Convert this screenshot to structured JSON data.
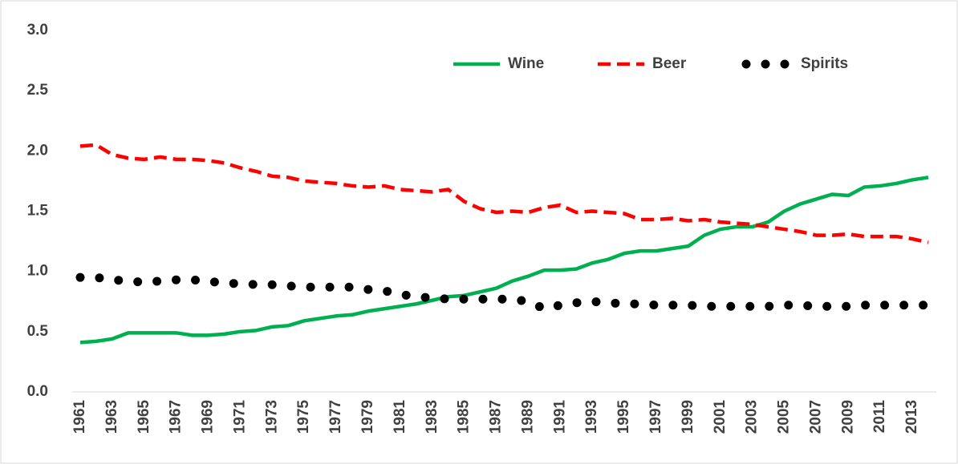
{
  "chart_data": {
    "type": "line",
    "categories": [
      "1961",
      null,
      "1963",
      null,
      "1965",
      null,
      "1967",
      null,
      "1969",
      null,
      "1971",
      null,
      "1973",
      null,
      "1975",
      null,
      "1977",
      null,
      "1979",
      null,
      "1981",
      null,
      "1983",
      null,
      "1985",
      null,
      "1987",
      null,
      "1989",
      null,
      "1991",
      null,
      "1993",
      null,
      "1995",
      null,
      "1997",
      null,
      "1999",
      null,
      "2001",
      null,
      "2003",
      null,
      "2005",
      null,
      "2007",
      null,
      "2009",
      null,
      "2011",
      null,
      "2013",
      null
    ],
    "series": [
      {
        "name": "Wine",
        "color": "#00b050",
        "style": "solid",
        "values": [
          0.41,
          0.42,
          0.44,
          0.49,
          0.49,
          0.49,
          0.49,
          0.47,
          0.47,
          0.48,
          0.5,
          0.51,
          0.54,
          0.55,
          0.59,
          0.61,
          0.63,
          0.64,
          0.67,
          0.69,
          0.71,
          0.73,
          0.76,
          0.79,
          0.8,
          0.83,
          0.86,
          0.92,
          0.96,
          1.01,
          1.01,
          1.02,
          1.07,
          1.1,
          1.15,
          1.17,
          1.17,
          1.19,
          1.21,
          1.3,
          1.35,
          1.37,
          1.37,
          1.41,
          1.5,
          1.56,
          1.6,
          1.64,
          1.63,
          1.7,
          1.71,
          1.73,
          1.76,
          1.78
        ]
      },
      {
        "name": "Beer",
        "color": "#ff0000",
        "style": "dashed",
        "values": [
          2.04,
          2.05,
          1.97,
          1.94,
          1.93,
          1.95,
          1.93,
          1.93,
          1.92,
          1.9,
          1.86,
          1.83,
          1.79,
          1.78,
          1.75,
          1.74,
          1.73,
          1.71,
          1.7,
          1.71,
          1.68,
          1.67,
          1.66,
          1.68,
          1.58,
          1.52,
          1.49,
          1.5,
          1.49,
          1.53,
          1.55,
          1.49,
          1.5,
          1.49,
          1.48,
          1.43,
          1.43,
          1.44,
          1.42,
          1.43,
          1.41,
          1.4,
          1.39,
          1.37,
          1.35,
          1.33,
          1.3,
          1.3,
          1.31,
          1.29,
          1.29,
          1.29,
          1.27,
          1.24
        ]
      },
      {
        "name": "Spirits",
        "color": "#000000",
        "style": "dotted",
        "values": [
          0.95,
          0.95,
          0.93,
          0.92,
          0.91,
          0.92,
          0.93,
          0.93,
          0.92,
          0.9,
          0.9,
          0.89,
          0.89,
          0.88,
          0.87,
          0.87,
          0.87,
          0.87,
          0.85,
          0.84,
          0.81,
          0.79,
          0.78,
          0.77,
          0.77,
          0.77,
          0.77,
          0.77,
          0.75,
          0.69,
          0.72,
          0.74,
          0.75,
          0.74,
          0.73,
          0.73,
          0.72,
          0.72,
          0.72,
          0.71,
          0.71,
          0.71,
          0.71,
          0.71,
          0.72,
          0.72,
          0.71,
          0.71,
          0.71,
          0.72,
          0.72,
          0.72,
          0.72,
          0.72
        ]
      }
    ],
    "ylim": [
      0,
      3
    ],
    "yticks": [
      {
        "value": 0,
        "label": "0.0"
      },
      0.5,
      {
        "value": 1,
        "label": "1.0"
      },
      1.5,
      {
        "value": 2,
        "label": "2.0"
      },
      2.5,
      {
        "value": 3,
        "label": "3.0"
      }
    ],
    "grid": false,
    "legend": "top"
  }
}
